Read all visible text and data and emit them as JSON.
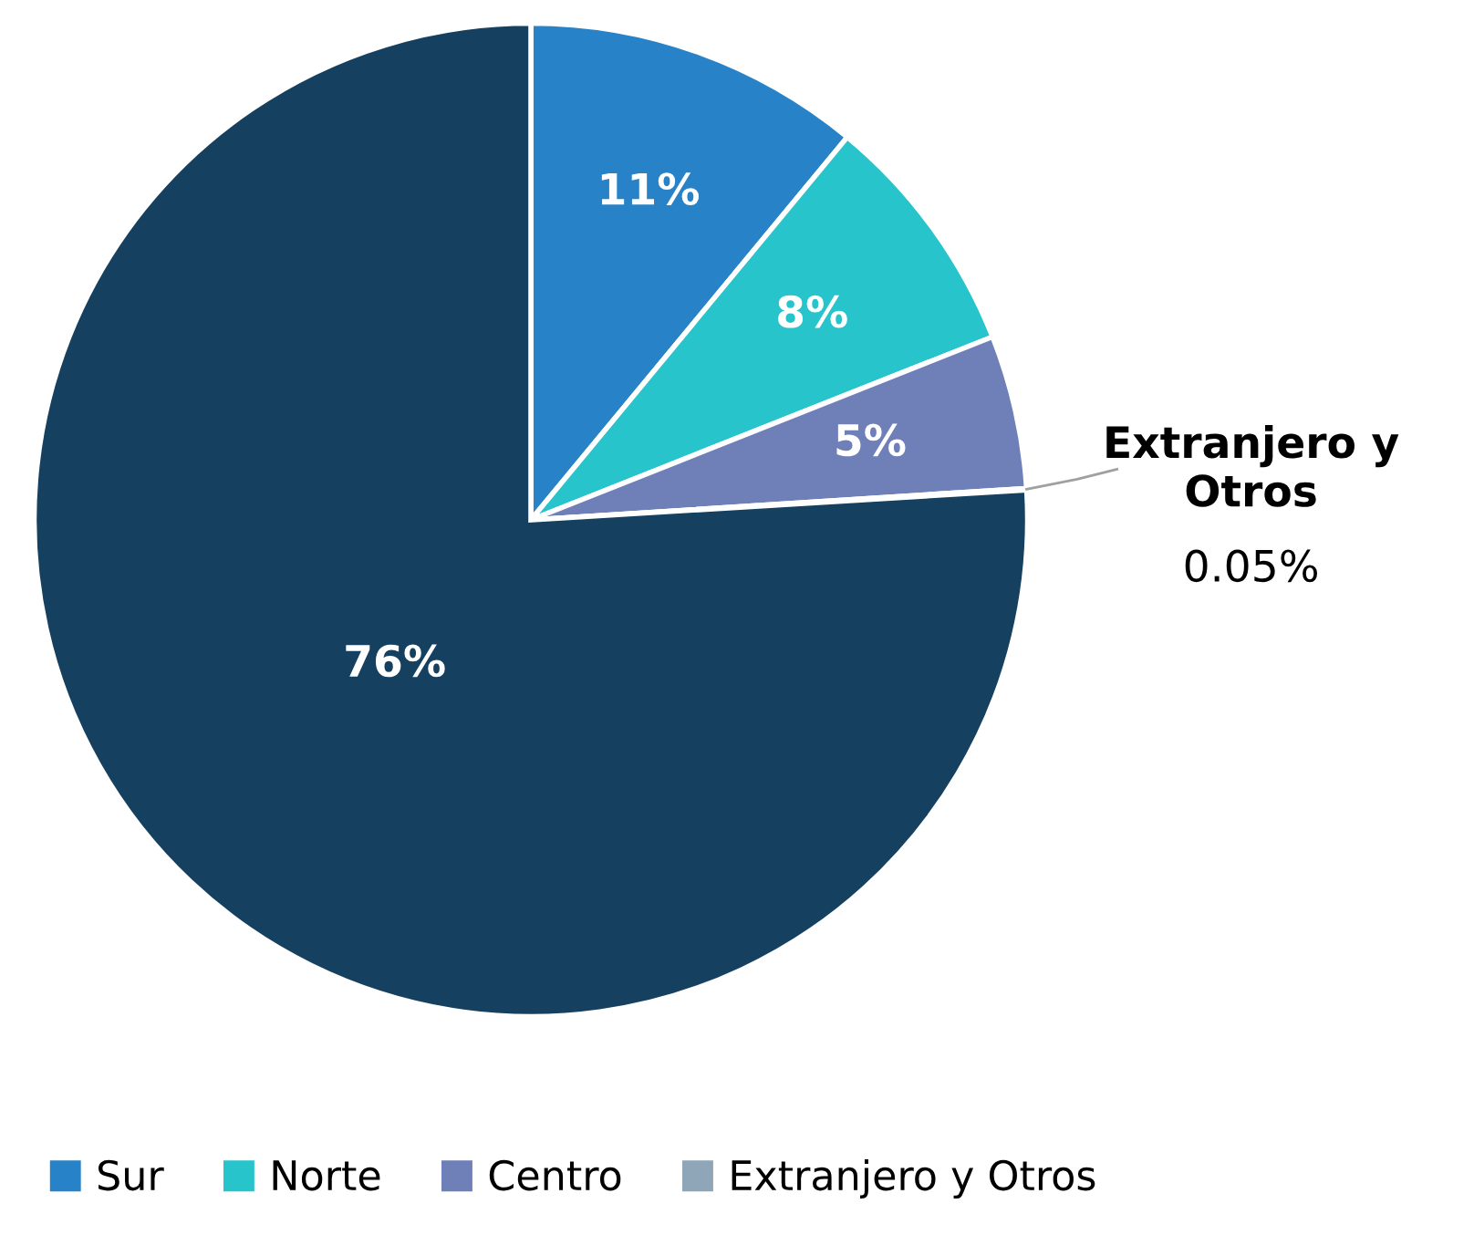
{
  "chart_data": {
    "type": "pie",
    "categories": [
      "Sur",
      "Norte",
      "Centro",
      "Extranjero y Otros",
      null
    ],
    "values": [
      11,
      8,
      5,
      0.05,
      76
    ],
    "colors": [
      "#2882c8",
      "#28c4cc",
      "#6f7fb8",
      "#8fa5b8",
      "#15405f"
    ],
    "value_labels": [
      "11%",
      "8%",
      "5%",
      "0.05%",
      "76%"
    ],
    "legend": "bottom"
  }
}
